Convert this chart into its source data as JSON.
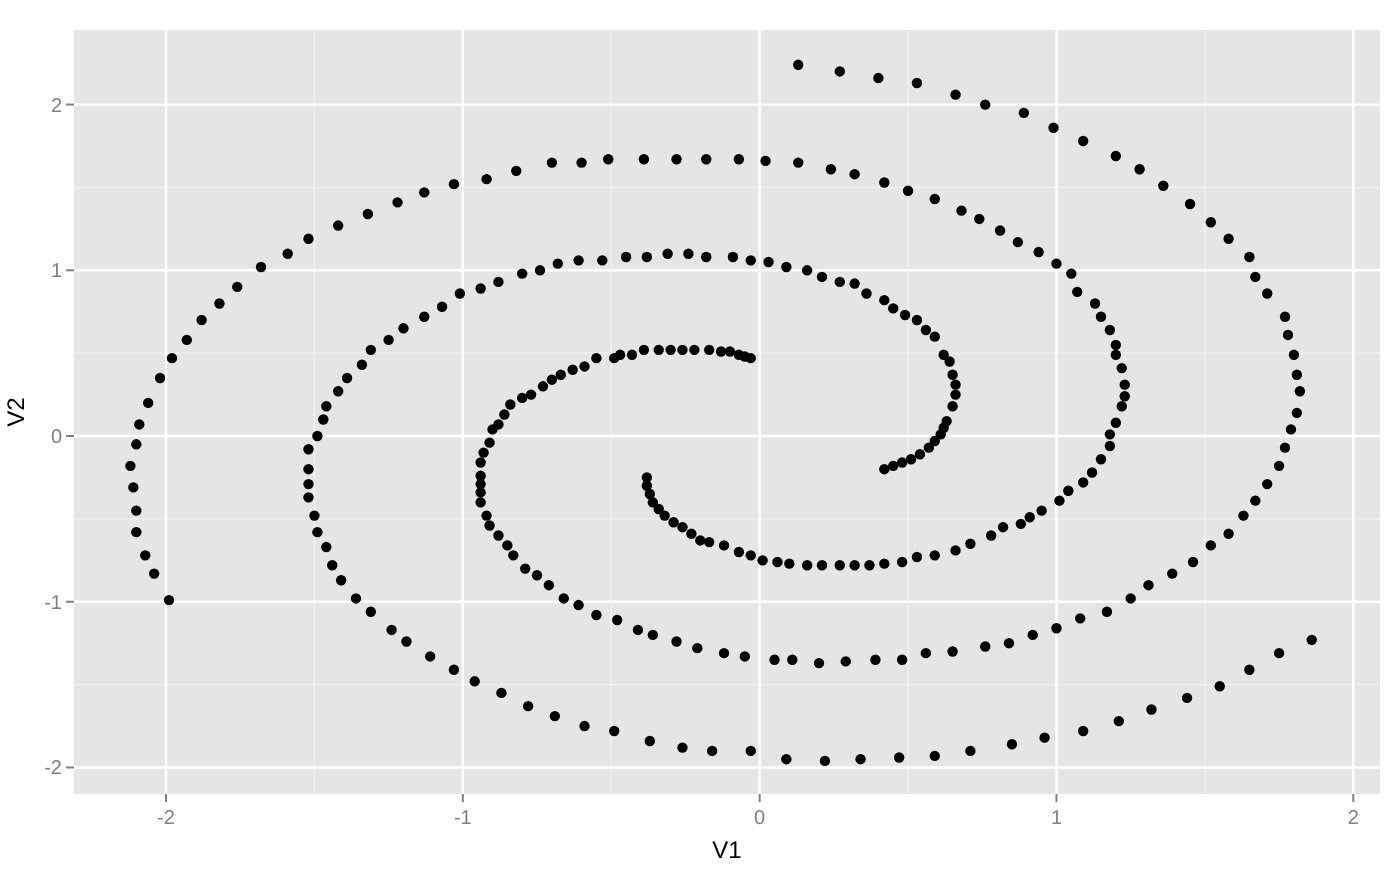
{
  "chart_data": {
    "type": "scatter",
    "xlabel": "V1",
    "ylabel": "V2",
    "xlim": [
      -2.31,
      2.09
    ],
    "ylim": [
      -2.16,
      2.45
    ],
    "xticks": [
      -2,
      -1,
      0,
      1,
      2
    ],
    "yticks": [
      -2,
      -1,
      0,
      1,
      2
    ],
    "grid": true,
    "marker": "circle",
    "series": [
      {
        "color": "#000000",
        "x": [
          -0.03,
          -0.05,
          -0.07,
          -0.1,
          -0.13,
          -0.17,
          -0.22,
          -0.26,
          -0.3,
          -0.34,
          -0.39,
          -0.43,
          -0.47,
          -0.49,
          -0.55,
          -0.59,
          -0.63,
          -0.67,
          -0.7,
          -0.73,
          -0.77,
          -0.8,
          -0.84,
          -0.86,
          -0.88,
          -0.9,
          -0.91,
          -0.93,
          -0.94,
          -0.94,
          -0.94,
          -0.94,
          -0.94,
          -0.92,
          -0.91,
          -0.88,
          -0.85,
          -0.83,
          -0.79,
          -0.75,
          -0.71,
          -0.66,
          -0.61,
          -0.55,
          -0.48,
          -0.41,
          -0.36,
          -0.28,
          -0.21,
          -0.12,
          -0.05,
          0.05,
          0.11,
          0.2,
          0.29,
          0.39,
          0.48,
          0.56,
          0.65,
          0.76,
          0.84,
          0.92,
          1.0,
          1.08,
          1.17,
          1.25,
          1.31,
          1.39,
          1.46,
          1.52,
          1.58,
          1.63,
          1.67,
          1.71,
          1.75,
          1.77,
          1.79,
          1.81,
          1.82,
          1.81,
          1.8,
          1.78,
          1.77,
          1.71,
          1.67,
          1.65,
          1.58,
          1.52,
          1.45,
          1.36,
          1.28,
          1.2,
          1.09,
          0.99,
          0.89,
          0.76,
          0.66,
          0.53,
          0.4,
          0.27,
          0.13,
          0.42,
          0.45,
          0.48,
          0.51,
          0.54,
          0.57,
          0.59,
          0.61,
          0.62,
          0.63,
          0.65,
          0.66,
          0.66,
          0.65,
          0.64,
          0.62,
          0.59,
          0.56,
          0.53,
          0.49,
          0.45,
          0.42,
          0.36,
          0.32,
          0.27,
          0.21,
          0.16,
          0.09,
          0.03,
          -0.03,
          -0.09,
          -0.18,
          -0.24,
          -0.31,
          -0.38,
          -0.45,
          -0.53,
          -0.61,
          -0.68,
          -0.74,
          -0.8,
          -0.88,
          -0.94,
          -1.01,
          -1.07,
          -1.13,
          -1.2,
          -1.25,
          -1.31,
          -1.34,
          -1.39,
          -1.42,
          -1.46,
          -1.47,
          -1.49,
          -1.52,
          -1.52,
          -1.52,
          -1.52,
          -1.5,
          -1.49,
          -1.46,
          -1.44,
          -1.41,
          -1.36,
          -1.31,
          -1.24,
          -1.19,
          -1.11,
          -1.03,
          -0.96,
          -0.87,
          -0.78,
          -0.69,
          -0.59,
          -0.49,
          -0.37,
          -0.26,
          -0.16,
          -0.03,
          0.09,
          0.22,
          0.34,
          0.47,
          0.59,
          0.71,
          0.85,
          0.96,
          1.09,
          1.21,
          1.32,
          1.44,
          1.55,
          1.65,
          1.75,
          1.86,
          -0.38,
          -0.38,
          -0.37,
          -0.36,
          -0.34,
          -0.32,
          -0.29,
          -0.26,
          -0.23,
          -0.2,
          -0.17,
          -0.12,
          -0.07,
          -0.03,
          0.01,
          0.06,
          0.1,
          0.16,
          0.21,
          0.27,
          0.32,
          0.37,
          0.42,
          0.48,
          0.53,
          0.59,
          0.66,
          0.71,
          0.78,
          0.82,
          0.88,
          0.91,
          0.95,
          1.01,
          1.04,
          1.09,
          1.12,
          1.15,
          1.18,
          1.18,
          1.2,
          1.22,
          1.23,
          1.23,
          1.22,
          1.2,
          1.2,
          1.18,
          1.15,
          1.13,
          1.07,
          1.05,
          1.0,
          0.94,
          0.87,
          0.81,
          0.74,
          0.68,
          0.59,
          0.5,
          0.42,
          0.32,
          0.24,
          0.13,
          0.02,
          -0.07,
          -0.18,
          -0.28,
          -0.39,
          -0.51,
          -0.6,
          -0.7,
          -0.82,
          -0.92,
          -1.03,
          -1.13,
          -1.22,
          -1.32,
          -1.42,
          -1.52,
          -1.59,
          -1.68,
          -1.76,
          -1.82,
          -1.88,
          -1.93,
          -1.98,
          -2.02,
          -2.06,
          -2.09,
          -2.1,
          -2.12,
          -2.11,
          -2.1,
          -2.1,
          -2.07,
          -2.04,
          -1.99
        ],
        "values": [
          0.47,
          0.48,
          0.49,
          0.51,
          0.51,
          0.52,
          0.52,
          0.52,
          0.52,
          0.52,
          0.52,
          0.49,
          0.49,
          0.47,
          0.47,
          0.42,
          0.4,
          0.37,
          0.34,
          0.3,
          0.25,
          0.23,
          0.19,
          0.13,
          0.07,
          0.04,
          -0.04,
          -0.1,
          -0.16,
          -0.24,
          -0.29,
          -0.34,
          -0.4,
          -0.48,
          -0.54,
          -0.6,
          -0.66,
          -0.72,
          -0.8,
          -0.84,
          -0.9,
          -0.98,
          -1.02,
          -1.08,
          -1.11,
          -1.17,
          -1.2,
          -1.24,
          -1.28,
          -1.31,
          -1.33,
          -1.35,
          -1.35,
          -1.37,
          -1.36,
          -1.35,
          -1.35,
          -1.31,
          -1.3,
          -1.27,
          -1.25,
          -1.2,
          -1.16,
          -1.1,
          -1.06,
          -0.98,
          -0.9,
          -0.83,
          -0.76,
          -0.66,
          -0.59,
          -0.48,
          -0.39,
          -0.29,
          -0.18,
          -0.07,
          0.04,
          0.14,
          0.27,
          0.37,
          0.49,
          0.61,
          0.72,
          0.86,
          0.96,
          1.08,
          1.19,
          1.29,
          1.4,
          1.51,
          1.61,
          1.69,
          1.78,
          1.86,
          1.95,
          2.0,
          2.06,
          2.13,
          2.16,
          2.2,
          2.24,
          -0.2,
          -0.18,
          -0.16,
          -0.14,
          -0.11,
          -0.07,
          -0.03,
          0.01,
          0.05,
          0.09,
          0.18,
          0.25,
          0.31,
          0.37,
          0.45,
          0.49,
          0.6,
          0.64,
          0.7,
          0.73,
          0.77,
          0.82,
          0.86,
          0.92,
          0.93,
          0.96,
          1.0,
          1.02,
          1.05,
          1.06,
          1.08,
          1.08,
          1.1,
          1.1,
          1.08,
          1.08,
          1.06,
          1.06,
          1.04,
          1.0,
          0.98,
          0.93,
          0.89,
          0.86,
          0.78,
          0.72,
          0.65,
          0.58,
          0.52,
          0.43,
          0.35,
          0.27,
          0.18,
          0.1,
          0.0,
          -0.08,
          -0.2,
          -0.29,
          -0.37,
          -0.48,
          -0.58,
          -0.67,
          -0.78,
          -0.87,
          -0.98,
          -1.06,
          -1.17,
          -1.24,
          -1.33,
          -1.41,
          -1.48,
          -1.55,
          -1.63,
          -1.69,
          -1.75,
          -1.78,
          -1.84,
          -1.88,
          -1.9,
          -1.9,
          -1.95,
          -1.96,
          -1.95,
          -1.94,
          -1.93,
          -1.9,
          -1.86,
          -1.82,
          -1.78,
          -1.72,
          -1.65,
          -1.58,
          -1.51,
          -1.41,
          -1.31,
          -1.23,
          -0.25,
          -0.3,
          -0.35,
          -0.4,
          -0.44,
          -0.48,
          -0.52,
          -0.55,
          -0.59,
          -0.63,
          -0.64,
          -0.66,
          -0.7,
          -0.72,
          -0.75,
          -0.76,
          -0.77,
          -0.78,
          -0.78,
          -0.78,
          -0.78,
          -0.78,
          -0.77,
          -0.76,
          -0.73,
          -0.72,
          -0.69,
          -0.65,
          -0.6,
          -0.55,
          -0.53,
          -0.49,
          -0.45,
          -0.39,
          -0.33,
          -0.28,
          -0.22,
          -0.14,
          -0.06,
          0.01,
          0.08,
          0.18,
          0.24,
          0.31,
          0.41,
          0.49,
          0.55,
          0.64,
          0.72,
          0.8,
          0.87,
          0.98,
          1.04,
          1.11,
          1.17,
          1.24,
          1.31,
          1.36,
          1.43,
          1.48,
          1.53,
          1.58,
          1.61,
          1.65,
          1.66,
          1.67,
          1.67,
          1.67,
          1.67,
          1.67,
          1.65,
          1.65,
          1.6,
          1.55,
          1.52,
          1.47,
          1.41,
          1.34,
          1.27,
          1.19,
          1.1,
          1.02,
          0.9,
          0.8,
          0.7,
          0.58,
          0.47,
          0.35,
          0.2,
          0.07,
          -0.05,
          -0.18,
          -0.31,
          -0.45,
          -0.58,
          -0.72,
          -0.83,
          -0.99
        ]
      }
    ]
  }
}
